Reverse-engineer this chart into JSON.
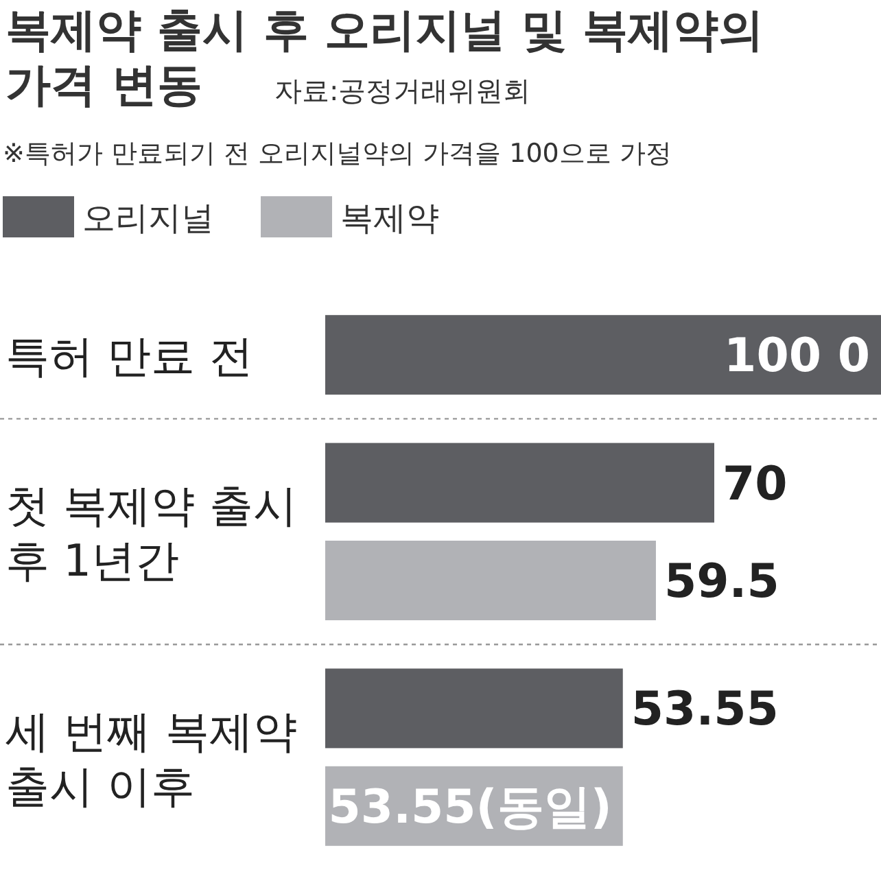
{
  "chart_data": {
    "type": "bar",
    "orientation": "horizontal",
    "title": "복제약 출시 후 오리지널 및 복제약의 가격 변동",
    "annotations": [
      "자료:공정거래위원회",
      "※특허가 만료되기 전 오리지널약의 가격을 100으로 가정"
    ],
    "categories": [
      "특허 만료 전",
      "첫 복제약 출시 후 1년간",
      "세 번째 복제약 출시 이후"
    ],
    "xlim": [
      0,
      100
    ],
    "tick_labels": "y",
    "legend": "top left",
    "series": [
      {
        "name": "오리지널",
        "color": "#5d5e62",
        "values": [
          100,
          70,
          53.55
        ],
        "value_labels": [
          "100 0",
          "70",
          "53.55"
        ]
      },
      {
        "name": "복제약",
        "color": "#b1b2b6",
        "values": [
          null,
          59.5,
          53.55
        ],
        "value_labels": [
          null,
          "59.5",
          "53.55(동일)"
        ]
      }
    ]
  }
}
